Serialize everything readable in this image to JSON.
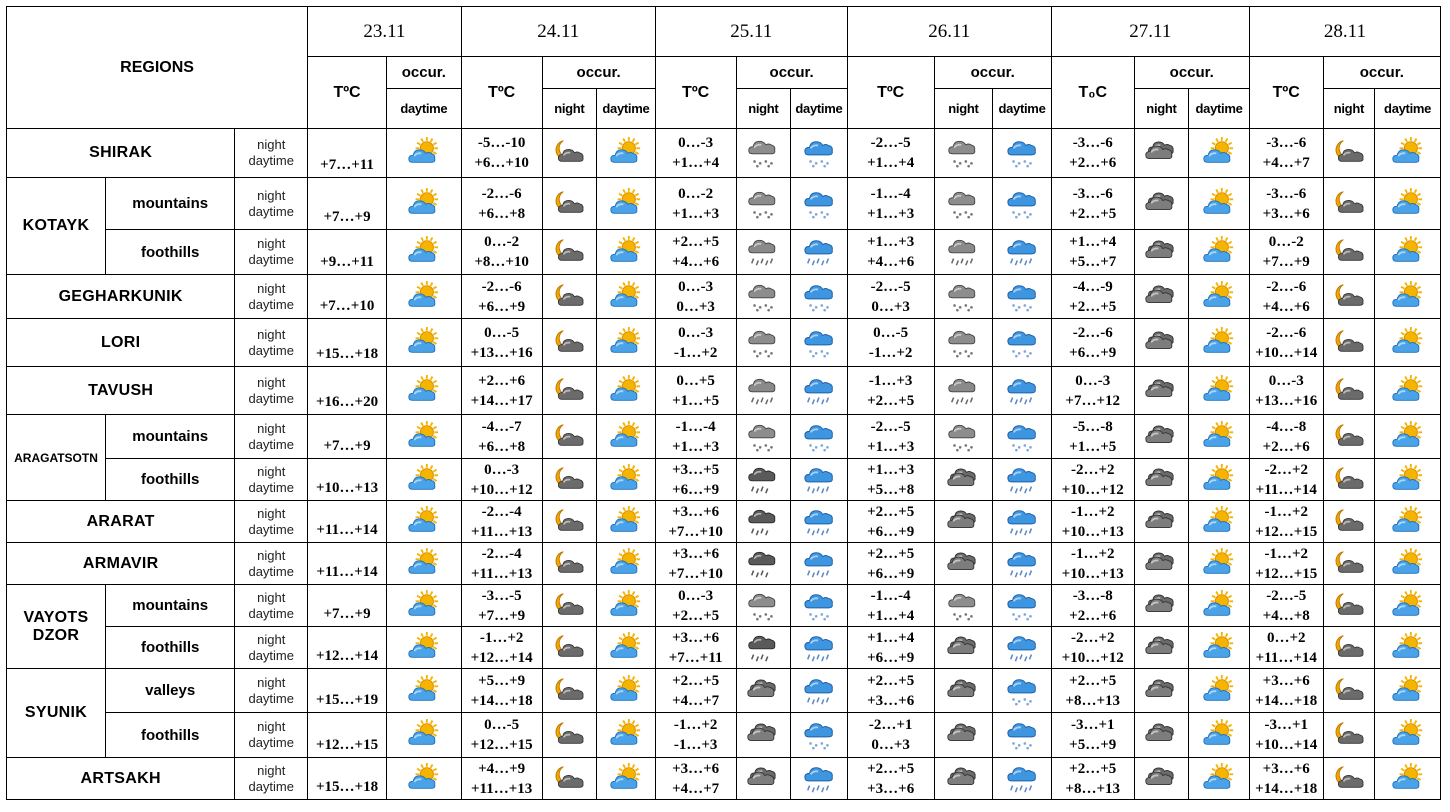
{
  "header": {
    "regions_label": "REGIONS",
    "dates": [
      "23.11",
      "24.11",
      "25.11",
      "26.11",
      "27.11",
      "28.11"
    ],
    "temp_labels": [
      "TºC",
      "TºC",
      "TºC",
      "TºC",
      "T₀C",
      "TºC"
    ],
    "occur_label": "occur.",
    "night_label": "night",
    "daytime_label": "daytime"
  },
  "row_labels": {
    "night": "night",
    "daytime": "daytime"
  },
  "rows": [
    {
      "region": "SHIRAK",
      "sub": "",
      "d0": {
        "t": "+7…+11",
        "day": "sun-cloud"
      },
      "d": [
        {
          "tn": "-5…-10",
          "td": "+6…+10",
          "n": "moon-cloud",
          "dy": "sun-cloud"
        },
        {
          "tn": "0…-3",
          "td": "+1…+4",
          "n": "snow-grey",
          "dy": "snow-blue"
        },
        {
          "tn": "-2…-5",
          "td": "+1…+4",
          "n": "snow-grey",
          "dy": "snow-blue"
        },
        {
          "tn": "-3…-6",
          "td": "+2…+6",
          "n": "dark-cloud",
          "dy": "sun-cloud"
        },
        {
          "tn": "-3…-6",
          "td": "+4…+7",
          "n": "moon-cloud",
          "dy": "sun-cloud"
        }
      ]
    },
    {
      "region": "KOTAYK",
      "sub": "mountains",
      "d0": {
        "t": "+7…+9",
        "day": "sun-cloud"
      },
      "d": [
        {
          "tn": "-2…-6",
          "td": "+6…+8",
          "n": "moon-cloud",
          "dy": "sun-cloud"
        },
        {
          "tn": "0…-2",
          "td": "+1…+3",
          "n": "snow-grey",
          "dy": "snow-blue"
        },
        {
          "tn": "-1…-4",
          "td": "+1…+3",
          "n": "snow-grey",
          "dy": "snow-blue"
        },
        {
          "tn": "-3…-6",
          "td": "+2…+5",
          "n": "dark-cloud",
          "dy": "sun-cloud"
        },
        {
          "tn": "-3…-6",
          "td": "+3…+6",
          "n": "moon-cloud",
          "dy": "sun-cloud"
        }
      ]
    },
    {
      "region": "",
      "sub": "foothills",
      "d0": {
        "t": "+9…+11",
        "day": "sun-cloud"
      },
      "d": [
        {
          "tn": "0…-2",
          "td": "+8…+10",
          "n": "moon-cloud",
          "dy": "sun-cloud"
        },
        {
          "tn": "+2…+5",
          "td": "+4…+6",
          "n": "rain-grey",
          "dy": "rain-blue"
        },
        {
          "tn": "+1…+3",
          "td": "+4…+6",
          "n": "rain-grey",
          "dy": "rain-blue"
        },
        {
          "tn": "+1…+4",
          "td": "+5…+7",
          "n": "dark-cloud",
          "dy": "sun-cloud"
        },
        {
          "tn": "0…-2",
          "td": "+7…+9",
          "n": "moon-cloud",
          "dy": "sun-cloud"
        }
      ]
    },
    {
      "region": "GEGHARKUNIK",
      "sub": "",
      "d0": {
        "t": "+7…+10",
        "day": "sun-cloud"
      },
      "d": [
        {
          "tn": "-2…-6",
          "td": "+6…+9",
          "n": "moon-cloud",
          "dy": "sun-cloud"
        },
        {
          "tn": "0…-3",
          "td": "0…+3",
          "n": "snow-grey",
          "dy": "snow-blue"
        },
        {
          "tn": "-2…-5",
          "td": "0…+3",
          "n": "snow-grey",
          "dy": "snow-blue"
        },
        {
          "tn": "-4…-9",
          "td": "+2…+5",
          "n": "dark-cloud",
          "dy": "sun-cloud"
        },
        {
          "tn": "-2…-6",
          "td": "+4…+6",
          "n": "moon-cloud",
          "dy": "sun-cloud"
        }
      ]
    },
    {
      "region": "LORI",
      "sub": "",
      "d0": {
        "t": "+15…+18",
        "day": "sun-cloud"
      },
      "d": [
        {
          "tn": "0…-5",
          "td": "+13…+16",
          "n": "moon-cloud",
          "dy": "sun-cloud"
        },
        {
          "tn": "0…-3",
          "td": "-1…+2",
          "n": "snow-grey",
          "dy": "snow-blue"
        },
        {
          "tn": "0…-5",
          "td": "-1…+2",
          "n": "snow-grey",
          "dy": "snow-blue"
        },
        {
          "tn": "-2…-6",
          "td": "+6…+9",
          "n": "dark-cloud",
          "dy": "sun-cloud"
        },
        {
          "tn": "-2…-6",
          "td": "+10…+14",
          "n": "moon-cloud",
          "dy": "sun-cloud"
        }
      ]
    },
    {
      "region": "TAVUSH",
      "sub": "",
      "d0": {
        "t": "+16…+20",
        "day": "sun-cloud"
      },
      "d": [
        {
          "tn": "+2…+6",
          "td": "+14…+17",
          "n": "moon-cloud",
          "dy": "sun-cloud"
        },
        {
          "tn": "0…+5",
          "td": "+1…+5",
          "n": "rain-grey",
          "dy": "rain-blue"
        },
        {
          "tn": "-1…+3",
          "td": "+2…+5",
          "n": "rain-grey",
          "dy": "rain-blue"
        },
        {
          "tn": "0…-3",
          "td": "+7…+12",
          "n": "dark-cloud",
          "dy": "sun-cloud"
        },
        {
          "tn": "0…-3",
          "td": "+13…+16",
          "n": "moon-cloud",
          "dy": "sun-cloud"
        }
      ]
    },
    {
      "region": "ARAGATSOTN",
      "sub": "mountains",
      "d0": {
        "t": "+7…+9",
        "day": "sun-cloud"
      },
      "d": [
        {
          "tn": "-4…-7",
          "td": "+6…+8",
          "n": "moon-cloud",
          "dy": "sun-cloud"
        },
        {
          "tn": "-1…-4",
          "td": "+1…+3",
          "n": "snow-grey",
          "dy": "snow-blue"
        },
        {
          "tn": "-2…-5",
          "td": "+1…+3",
          "n": "snow-grey",
          "dy": "snow-blue"
        },
        {
          "tn": "-5…-8",
          "td": "+1…+5",
          "n": "dark-cloud",
          "dy": "sun-cloud"
        },
        {
          "tn": "-4…-8",
          "td": "+2…+6",
          "n": "moon-cloud",
          "dy": "sun-cloud"
        }
      ]
    },
    {
      "region": "",
      "sub": "foothills",
      "d0": {
        "t": "+10…+13",
        "day": "sun-cloud"
      },
      "d": [
        {
          "tn": "0…-3",
          "td": "+10…+12",
          "n": "moon-cloud",
          "dy": "sun-cloud"
        },
        {
          "tn": "+3…+5",
          "td": "+6…+9",
          "n": "rain-dark",
          "dy": "rain-blue"
        },
        {
          "tn": "+1…+3",
          "td": "+5…+8",
          "n": "dark-cloud",
          "dy": "rain-blue"
        },
        {
          "tn": "-2…+2",
          "td": "+10…+12",
          "n": "dark-cloud",
          "dy": "sun-cloud"
        },
        {
          "tn": "-2…+2",
          "td": "+11…+14",
          "n": "moon-cloud",
          "dy": "sun-cloud"
        }
      ]
    },
    {
      "region": "ARARAT",
      "sub": "",
      "d0": {
        "t": "+11…+14",
        "day": "sun-cloud"
      },
      "d": [
        {
          "tn": "-2…-4",
          "td": "+11…+13",
          "n": "moon-cloud",
          "dy": "sun-cloud"
        },
        {
          "tn": "+3…+6",
          "td": "+7…+10",
          "n": "rain-dark",
          "dy": "rain-blue"
        },
        {
          "tn": "+2…+5",
          "td": "+6…+9",
          "n": "dark-cloud",
          "dy": "rain-blue"
        },
        {
          "tn": "-1…+2",
          "td": "+10…+13",
          "n": "dark-cloud",
          "dy": "sun-cloud"
        },
        {
          "tn": "-1…+2",
          "td": "+12…+15",
          "n": "moon-cloud",
          "dy": "sun-cloud"
        }
      ]
    },
    {
      "region": "ARMAVIR",
      "sub": "",
      "d0": {
        "t": "+11…+14",
        "day": "sun-cloud"
      },
      "d": [
        {
          "tn": "-2…-4",
          "td": "+11…+13",
          "n": "moon-cloud",
          "dy": "sun-cloud"
        },
        {
          "tn": "+3…+6",
          "td": "+7…+10",
          "n": "rain-dark",
          "dy": "rain-blue"
        },
        {
          "tn": "+2…+5",
          "td": "+6…+9",
          "n": "dark-cloud",
          "dy": "rain-blue"
        },
        {
          "tn": "-1…+2",
          "td": "+10…+13",
          "n": "dark-cloud",
          "dy": "sun-cloud"
        },
        {
          "tn": "-1…+2",
          "td": "+12…+15",
          "n": "moon-cloud",
          "dy": "sun-cloud"
        }
      ]
    },
    {
      "region": "VAYOTS DZOR",
      "sub": "mountains",
      "d0": {
        "t": "+7…+9",
        "day": "sun-cloud"
      },
      "d": [
        {
          "tn": "-3…-5",
          "td": "+7…+9",
          "n": "moon-cloud",
          "dy": "sun-cloud"
        },
        {
          "tn": "0…-3",
          "td": "+2…+5",
          "n": "snow-grey",
          "dy": "snow-blue"
        },
        {
          "tn": "-1…-4",
          "td": "+1…+4",
          "n": "snow-grey",
          "dy": "snow-blue"
        },
        {
          "tn": "-3…-8",
          "td": "+2…+6",
          "n": "dark-cloud",
          "dy": "sun-cloud"
        },
        {
          "tn": "-2…-5",
          "td": "+4…+8",
          "n": "moon-cloud",
          "dy": "sun-cloud"
        }
      ]
    },
    {
      "region": "",
      "sub": "foothills",
      "d0": {
        "t": "+12…+14",
        "day": "sun-cloud"
      },
      "d": [
        {
          "tn": "-1…+2",
          "td": "+12…+14",
          "n": "moon-cloud",
          "dy": "sun-cloud"
        },
        {
          "tn": "+3…+6",
          "td": "+7…+11",
          "n": "rain-dark",
          "dy": "rain-blue"
        },
        {
          "tn": "+1…+4",
          "td": "+6…+9",
          "n": "dark-cloud",
          "dy": "rain-blue"
        },
        {
          "tn": "-2…+2",
          "td": "+10…+12",
          "n": "dark-cloud",
          "dy": "sun-cloud"
        },
        {
          "tn": "0…+2",
          "td": "+11…+14",
          "n": "moon-cloud",
          "dy": "sun-cloud"
        }
      ]
    },
    {
      "region": "SYUNIK",
      "sub": "valleys",
      "d0": {
        "t": "+15…+19",
        "day": "sun-cloud"
      },
      "d": [
        {
          "tn": "+5…+9",
          "td": "+14…+18",
          "n": "moon-cloud",
          "dy": "sun-cloud"
        },
        {
          "tn": "+2…+5",
          "td": "+4…+7",
          "n": "dark-cloud",
          "dy": "rain-blue"
        },
        {
          "tn": "+2…+5",
          "td": "+3…+6",
          "n": "dark-cloud",
          "dy": "snow-blue"
        },
        {
          "tn": "+2…+5",
          "td": "+8…+13",
          "n": "dark-cloud",
          "dy": "sun-cloud"
        },
        {
          "tn": "+3…+6",
          "td": "+14…+18",
          "n": "moon-cloud",
          "dy": "sun-cloud"
        }
      ]
    },
    {
      "region": "",
      "sub": "foothills",
      "d0": {
        "t": "+12…+15",
        "day": "sun-cloud"
      },
      "d": [
        {
          "tn": "0…-5",
          "td": "+12…+15",
          "n": "moon-cloud",
          "dy": "sun-cloud"
        },
        {
          "tn": "-1…+2",
          "td": "-1…+3",
          "n": "dark-cloud",
          "dy": "snow-blue"
        },
        {
          "tn": "-2…+1",
          "td": "0…+3",
          "n": "dark-cloud",
          "dy": "snow-blue"
        },
        {
          "tn": "-3…+1",
          "td": "+5…+9",
          "n": "dark-cloud",
          "dy": "sun-cloud"
        },
        {
          "tn": "-3…+1",
          "td": "+10…+14",
          "n": "moon-cloud",
          "dy": "sun-cloud"
        }
      ]
    },
    {
      "region": "ARTSAKH",
      "sub": "",
      "d0": {
        "t": "+15…+18",
        "day": "sun-cloud"
      },
      "d": [
        {
          "tn": "+4…+9",
          "td": "+11…+13",
          "n": "moon-cloud",
          "dy": "sun-cloud"
        },
        {
          "tn": "+3…+6",
          "td": "+4…+7",
          "n": "dark-cloud",
          "dy": "rain-blue"
        },
        {
          "tn": "+2…+5",
          "td": "+3…+6",
          "n": "dark-cloud",
          "dy": "rain-blue"
        },
        {
          "tn": "+2…+5",
          "td": "+8…+13",
          "n": "dark-cloud",
          "dy": "sun-cloud"
        },
        {
          "tn": "+3…+6",
          "td": "+14…+18",
          "n": "moon-cloud",
          "dy": "sun-cloud"
        }
      ]
    }
  ],
  "colors": {
    "border": "#000000",
    "sun": "#f5b400",
    "cloud_blue": "#3b8fd6",
    "cloud_grey": "#8a8a8a",
    "cloud_dark": "#555555",
    "moon": "#f0a800"
  }
}
